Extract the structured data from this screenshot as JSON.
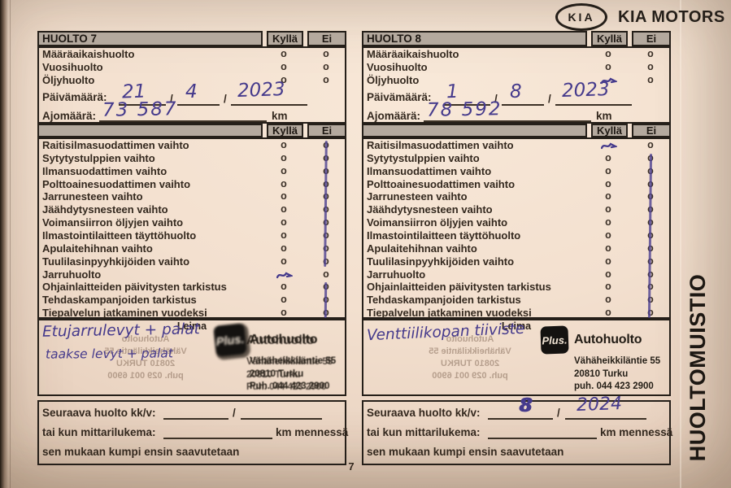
{
  "brand": {
    "logo_text": "KIA",
    "name": "KIA MOTORS"
  },
  "side_label": "HUOLTOMUISTIO",
  "page_number": "7",
  "labels": {
    "kylla": "Kyllä",
    "ei": "Ei",
    "leima": "Leima",
    "date": "Päivämäärä:",
    "odometer": "Ajomäärä:",
    "km": "km",
    "next_service": "Seuraava huolto kk/v:",
    "or_odometer": "tai kun mittarilukema:",
    "km_by": "km mennessä",
    "whichever_first": "sen mukaan kumpi ensin saavutetaan",
    "check_circle": "o",
    "top_items": [
      "Määräaikaishuolto",
      "Vuosihuolto",
      "Öljyhuolto"
    ],
    "service_items": [
      "Raitisilmasuodattimen vaihto",
      "Sytytystulppien vaihto",
      "Ilmansuodattimen vaihto",
      "Polttoainesuodattimen vaihto",
      "Jarrunesteen vaihto",
      "Jäähdytysnesteen vaihto",
      "Voimansiirron öljyjen vaihto",
      "Ilmastointilaitteen täyttöhuolto",
      "Apulaitehihnan vaihto",
      "Tuulilasinpyyhkijöiden vaihto",
      "Jarruhuolto",
      "Ohjainlaitteiden päivitysten tarkistus",
      "Tehdaskampanjoiden tarkistus",
      "Tiepalvelun jatkaminen vuodeksi"
    ]
  },
  "panels": [
    {
      "title": "HUOLTO 7",
      "date": {
        "day": "21",
        "month": "4",
        "year": "2023"
      },
      "odometer_value": "73 587",
      "notes": [
        "Etujarrulevyt + palat",
        "taakse levyt + palat"
      ],
      "next": {
        "month": "",
        "year": ""
      },
      "stamp": {
        "logo": "Plus.",
        "name": "Autohuolto",
        "address": "Vähäheikkiläntie 55",
        "city": "20810 Turku",
        "phone": "Puh. 044 423 2900",
        "smudged": true
      },
      "marks": {
        "top_kylla": [],
        "list_kylla": [
          10
        ],
        "ei_line_rows": [
          [
            0,
            9
          ],
          [
            11,
            13
          ]
        ]
      }
    },
    {
      "title": "HUOLTO 8",
      "date": {
        "day": "1",
        "month": "8",
        "year": "2023"
      },
      "odometer_value": "78 592",
      "notes": [
        "Venttiilikopan tiiviste"
      ],
      "next": {
        "month": "8",
        "year": "2024"
      },
      "stamp": {
        "logo": "Plus.",
        "name": "Autohuolto",
        "address": "Vähäheikkiläntie 55",
        "city": "20810 Turku",
        "phone": "puh. 044 423 2900",
        "smudged": false
      },
      "marks": {
        "top_kylla": [
          2
        ],
        "list_kylla": [
          0
        ],
        "ei_line_rows": [
          [
            1,
            13
          ]
        ]
      }
    }
  ],
  "ghost_stamp": [
    "Autohuolto",
    "Vähäheikkiläntie 55",
    "20810 TURKU",
    "puh. 029 001 6900"
  ],
  "ink_color": "#453a8c",
  "paper_color": "#f3e0cf"
}
